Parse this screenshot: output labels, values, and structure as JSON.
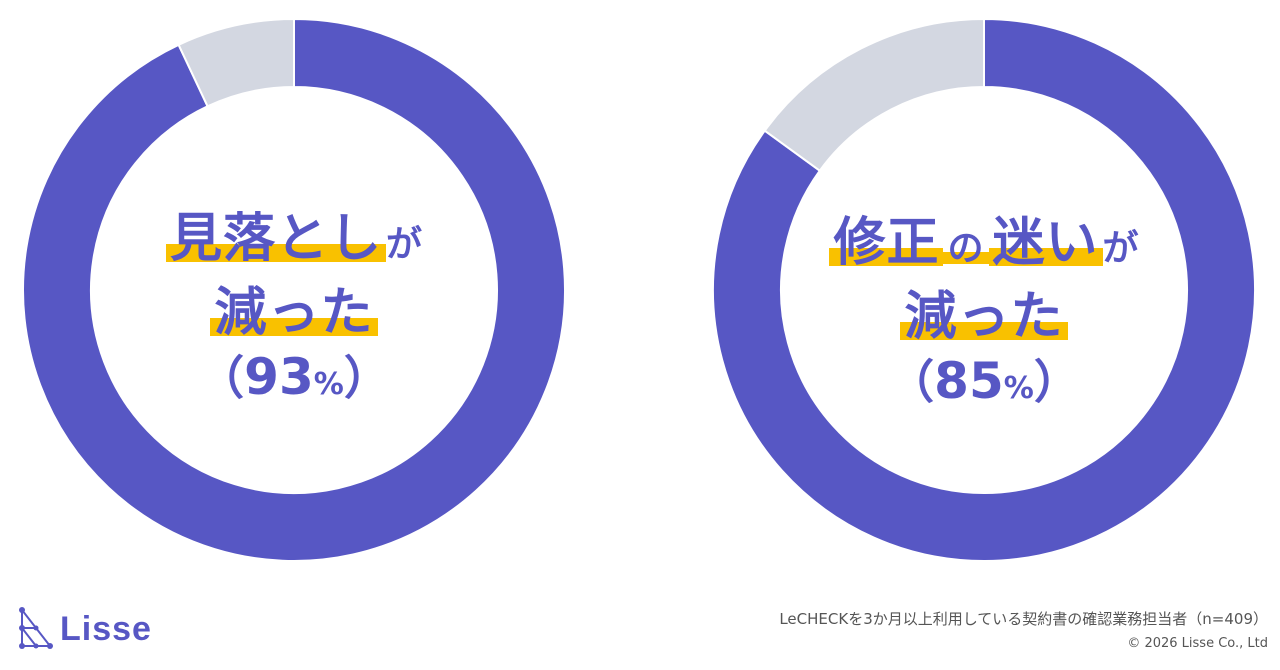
{
  "colors": {
    "accent": "#5757C4",
    "remainder": "#D3D7E1",
    "highlight": "#F9C100",
    "text_gray": "#555555"
  },
  "chart_data": [
    {
      "type": "pie",
      "slices": [
        {
          "value": 93,
          "color": "#5757C4"
        },
        {
          "value": 7,
          "color": "#D3D7E1"
        }
      ],
      "center_label": {
        "line1_highlight": "見落とし",
        "line1_suffix": "が",
        "line2_highlight": "減った",
        "pct_open": "（",
        "pct_value": "93",
        "pct_unit": "%",
        "pct_close": "）"
      }
    },
    {
      "type": "pie",
      "slices": [
        {
          "value": 85,
          "color": "#5757C4"
        },
        {
          "value": 15,
          "color": "#D3D7E1"
        }
      ],
      "center_label": {
        "line1_highlight_a": "修正",
        "line1_particle": "の",
        "line1_highlight_b": "迷い",
        "line1_suffix": "が",
        "line2_highlight": "減った",
        "pct_open": "（",
        "pct_value": "85",
        "pct_unit": "%",
        "pct_close": "）"
      }
    }
  ],
  "logo": {
    "name": "Lisse",
    "icon": "lisse-logo-icon"
  },
  "footnote": "LeCHECKを3か月以上利用している契約書の確認業務担当者（n=409）",
  "copyright": "© 2026 Lisse Co., Ltd"
}
